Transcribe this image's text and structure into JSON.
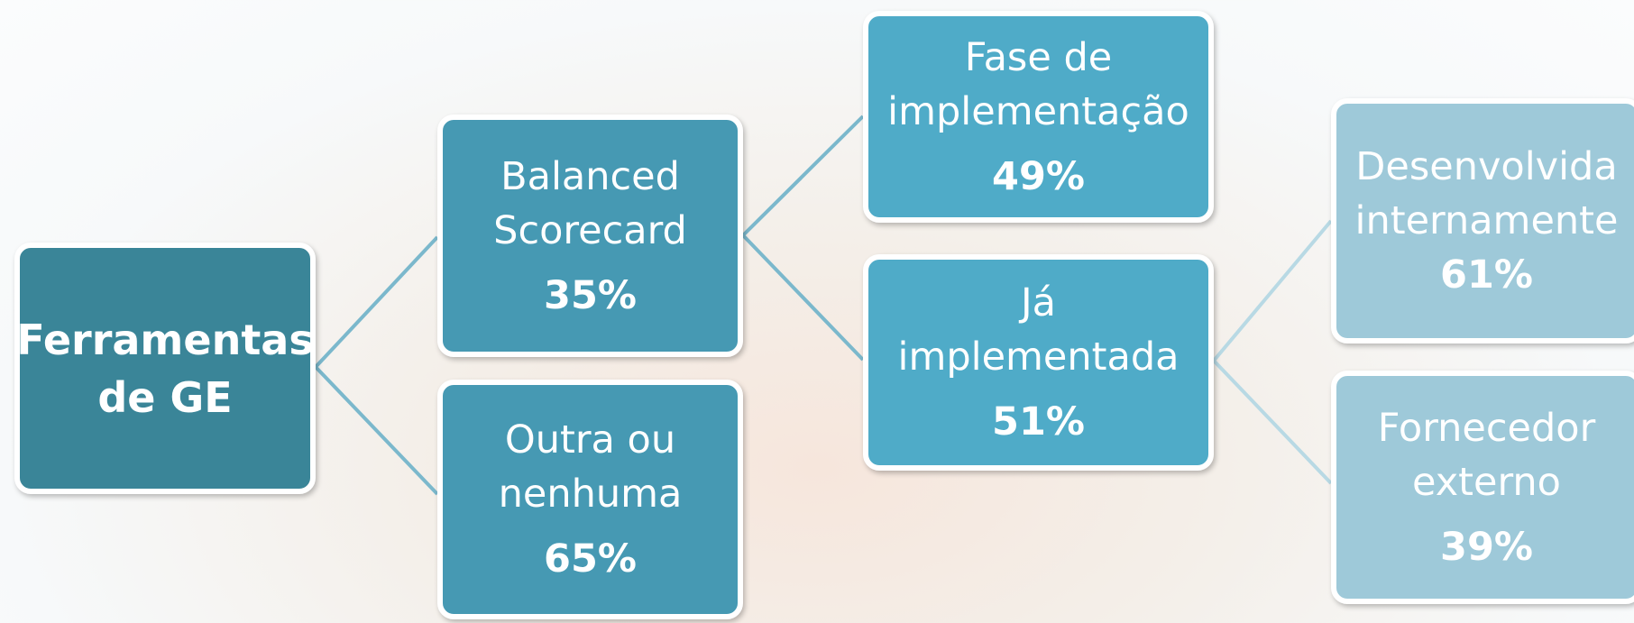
{
  "nodes": [
    {
      "label": [
        "Ferramentas",
        "de GE"
      ]
    },
    {
      "label": [
        "Balanced",
        "Scorecard"
      ],
      "value": "35%"
    },
    {
      "label": [
        "Outra ou",
        "nenhuma"
      ],
      "value": "65%"
    },
    {
      "label": [
        "Fase de",
        "implementação"
      ],
      "value": "49%"
    },
    {
      "label": [
        "Já",
        "implementada"
      ],
      "value": "51%"
    },
    {
      "label": [
        "Desenvolvida",
        "internamente"
      ],
      "value": "61%"
    },
    {
      "label": [
        "Fornecedor",
        "externo"
      ],
      "value": "39%"
    }
  ]
}
